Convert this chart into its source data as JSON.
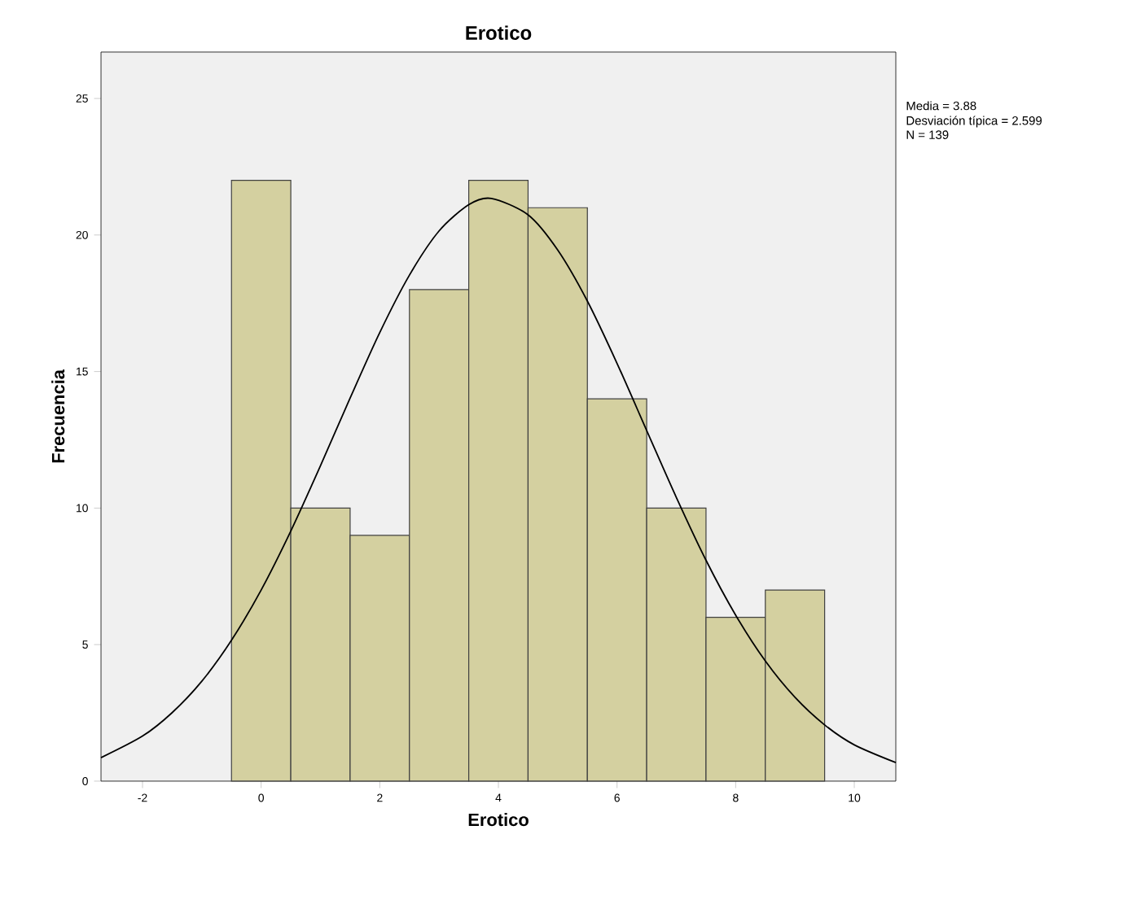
{
  "chart_data": {
    "type": "histogram",
    "title": "Erotico",
    "xlabel": "Erotico",
    "ylabel": "Frecuencia",
    "annotations": [
      "Media = 3.88",
      "Desviación típica = 2.599",
      "N = 139"
    ],
    "xlim": [
      -2.7,
      10.7
    ],
    "ylim": [
      0,
      26.7
    ],
    "xticks": [
      -2,
      0,
      2,
      4,
      6,
      8,
      10
    ],
    "yticks": [
      0,
      5,
      10,
      15,
      20,
      25
    ],
    "series": [
      {
        "color": "#d4d0a0",
        "bins": [
          -0.5,
          0.5,
          1.5,
          2.5,
          3.5,
          4.5,
          5.5,
          6.5,
          7.5,
          8.5,
          9.5
        ],
        "values": [
          22,
          10,
          9,
          18,
          22,
          21,
          14,
          10,
          6,
          7
        ]
      },
      {
        "type": "line",
        "color": "#000000",
        "x": [
          -2.7,
          -2,
          -1.5,
          -1,
          -0.5,
          0,
          0.5,
          1,
          1.5,
          2,
          2.5,
          3,
          3.5,
          3.88,
          4.5,
          5,
          5.5,
          6,
          6.5,
          7,
          7.5,
          8,
          8.5,
          9,
          9.5,
          10,
          10.7
        ],
        "values": [
          0.86,
          1.65,
          2.51,
          3.66,
          5.16,
          7.0,
          9.16,
          11.55,
          14.03,
          16.43,
          18.53,
          20.15,
          21.11,
          21.34,
          20.74,
          19.45,
          17.58,
          15.3,
          12.84,
          10.39,
          8.09,
          6.08,
          4.4,
          3.07,
          2.06,
          1.33,
          0.68
        ]
      }
    ]
  }
}
